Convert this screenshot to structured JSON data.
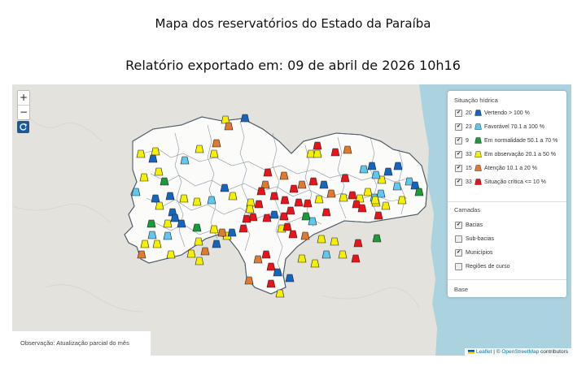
{
  "header": {
    "title": "Mapa dos reservatórios do Estado da Paraíba",
    "subtitle": "Relatório exportado em: 09 de abril de 2026 10h16"
  },
  "map_controls": {
    "zoom_in": "+",
    "zoom_out": "−",
    "reset_icon": "refresh-icon"
  },
  "legend": {
    "section_title": "Situação hídrica",
    "items": [
      {
        "count": "20",
        "label": "Vertendo > 100 %",
        "color": "#1565c0"
      },
      {
        "count": "23",
        "label": "Favorável 70.1 a 100 %",
        "color": "#5ec8f0"
      },
      {
        "count": "9",
        "label": "Em normalidade 50.1 a 70 %",
        "color": "#1a9a3a"
      },
      {
        "count": "33",
        "label": "Em observação 20.1 a 50 %",
        "color": "#f5f000"
      },
      {
        "count": "15",
        "label": "Atenção 10.1 a 20 %",
        "color": "#e07a30"
      },
      {
        "count": "33",
        "label": "Situação crítica <= 10 %",
        "color": "#e8141a"
      }
    ]
  },
  "layers": {
    "section_title": "Camadas",
    "items": [
      {
        "label": "Bacias",
        "checked": true
      },
      {
        "label": "Sub-bacias",
        "checked": false
      },
      {
        "label": "Municípios",
        "checked": true
      },
      {
        "label": "Regiões de curso",
        "checked": false
      }
    ]
  },
  "base_section": {
    "title": "Base"
  },
  "observation": "Observação: Atualização parcial do mês",
  "attribution": {
    "leaflet": "Leaflet",
    "separator": " | © ",
    "osm": "OpenStreetMap",
    "contributors": " contributors"
  }
}
